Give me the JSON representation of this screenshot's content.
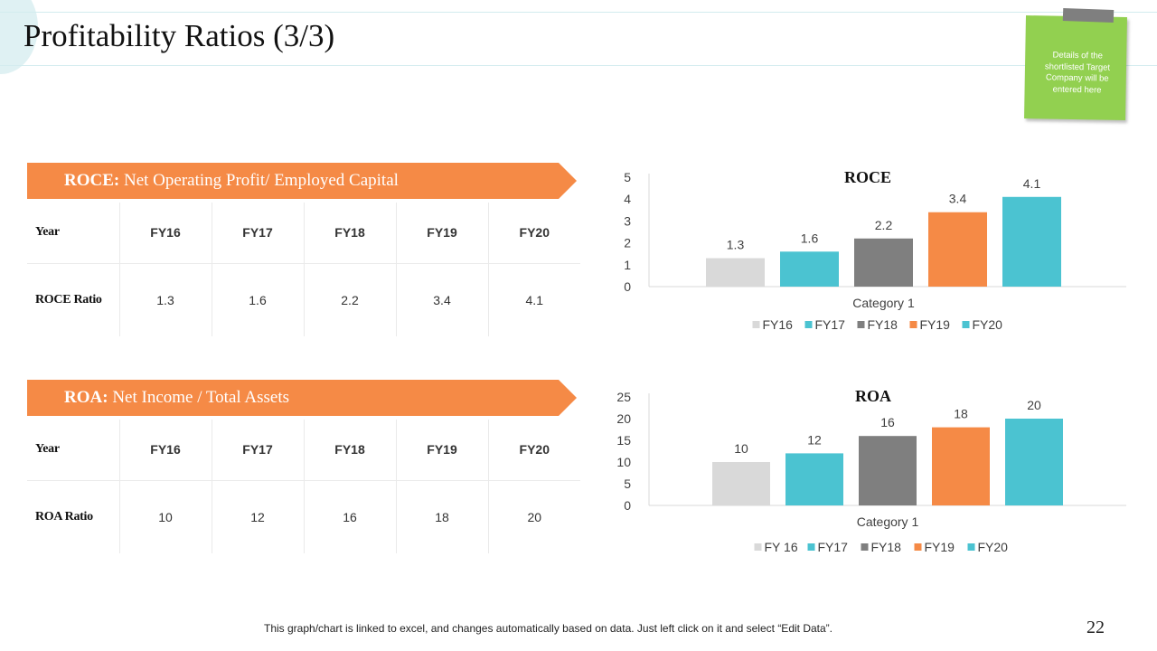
{
  "page": {
    "title": "Profitability Ratios (3/3)",
    "sticky_note": "Details of the shortlisted Target Company will be entered here",
    "footer_note": "This graph/chart is linked to excel, and changes automatically based on data. Just left click on it and select “Edit Data”.",
    "page_number": "22"
  },
  "roce_section": {
    "banner_bold": "ROCE:",
    "banner_text": " Net Operating Profit/ Employed Capital",
    "table": {
      "header_label": "Year",
      "years": [
        "FY16",
        "FY17",
        "FY18",
        "FY19",
        "FY20"
      ],
      "row_label": "ROCE Ratio",
      "values": [
        "1.3",
        "1.6",
        "2.2",
        "3.4",
        "4.1"
      ]
    }
  },
  "roa_section": {
    "banner_bold": "ROA:",
    "banner_text": " Net Income / Total Assets",
    "table": {
      "header_label": "Year",
      "years": [
        "FY16",
        "FY17",
        "FY18",
        "FY19",
        "FY20"
      ],
      "row_label": "ROA Ratio",
      "values": [
        "10",
        "12",
        "16",
        "18",
        "20"
      ]
    }
  },
  "chart_data": [
    {
      "type": "bar",
      "title": "ROCE",
      "categories": [
        "Category 1"
      ],
      "series": [
        {
          "name": "FY16",
          "values": [
            1.3
          ],
          "color": "#d9d9d9"
        },
        {
          "name": "FY17",
          "values": [
            1.6
          ],
          "color": "#4bc3d1"
        },
        {
          "name": "FY18",
          "values": [
            2.2
          ],
          "color": "#7f7f7f"
        },
        {
          "name": "FY19",
          "values": [
            3.4
          ],
          "color": "#f58a46"
        },
        {
          "name": "FY20",
          "values": [
            4.1
          ],
          "color": "#4bc3d1"
        }
      ],
      "yticks": [
        0,
        1,
        2,
        3,
        4,
        5
      ],
      "ylim": [
        0,
        5
      ],
      "legend": "bottom",
      "grid": false
    },
    {
      "type": "bar",
      "title": "ROA",
      "categories": [
        "Category 1"
      ],
      "series": [
        {
          "name": "FY 16",
          "values": [
            10
          ],
          "color": "#d9d9d9"
        },
        {
          "name": "FY17",
          "values": [
            12
          ],
          "color": "#4bc3d1"
        },
        {
          "name": "FY18",
          "values": [
            16
          ],
          "color": "#7f7f7f"
        },
        {
          "name": "FY19",
          "values": [
            18
          ],
          "color": "#f58a46"
        },
        {
          "name": "FY20",
          "values": [
            20
          ],
          "color": "#4bc3d1"
        }
      ],
      "yticks": [
        0,
        5,
        10,
        15,
        20,
        25
      ],
      "ylim": [
        0,
        25
      ],
      "legend": "bottom",
      "grid": false
    }
  ]
}
